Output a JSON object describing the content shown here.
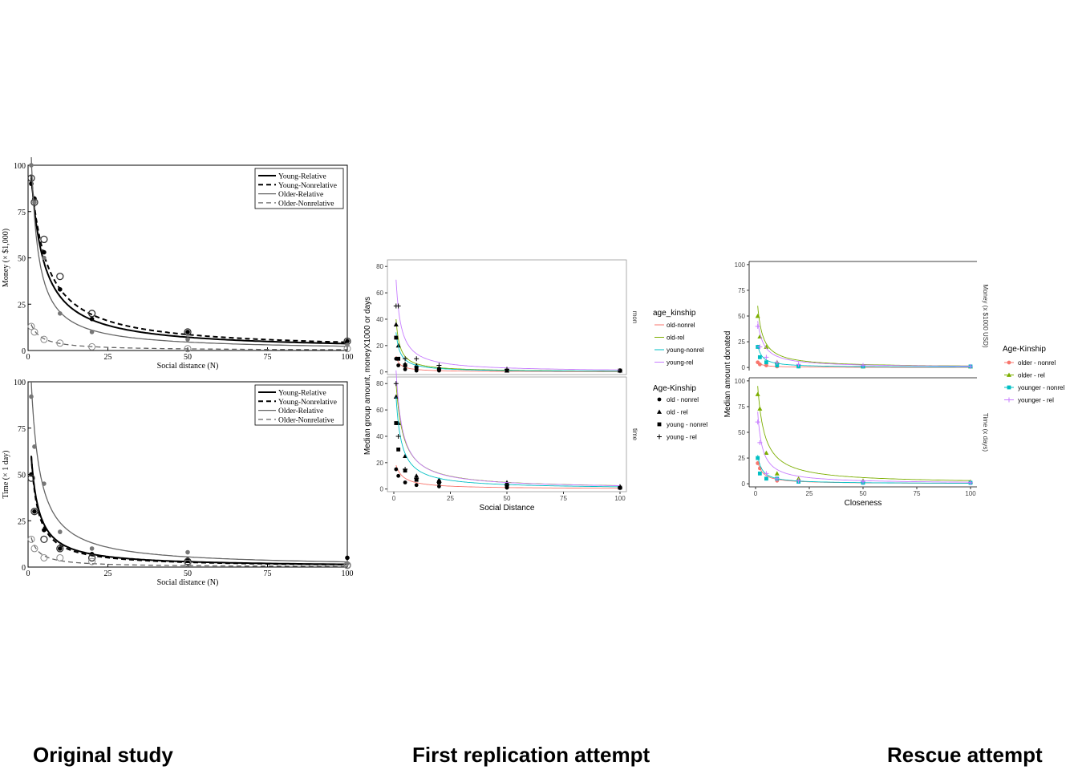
{
  "captions": {
    "original": "Original study",
    "replication": "First replication attempt",
    "rescue": "Rescue attempt"
  },
  "chart_data": [
    {
      "id": "original-money",
      "type": "line",
      "xlabel": "Social distance (N)",
      "ylabel": "Money (× $1,000)",
      "xlim": [
        0,
        100
      ],
      "ylim": [
        0,
        100
      ],
      "xticks": [
        "0",
        "25",
        "50",
        "75",
        "100"
      ],
      "yticks": [
        "0",
        "25",
        "50",
        "75",
        "100"
      ],
      "legend_position": "top-right",
      "series": [
        {
          "name": "Young-Relative",
          "x": [
            1,
            2,
            5,
            10,
            20,
            50,
            100
          ],
          "y": [
            90,
            82,
            53,
            33,
            17,
            10,
            5
          ],
          "fit": [
            95,
            0.25
          ],
          "color": "#000000",
          "dash": "",
          "width": 2,
          "marker": "dot-black"
        },
        {
          "name": "Young-Nonrelative",
          "x": [
            1,
            2,
            5,
            10,
            20,
            50,
            100
          ],
          "y": [
            93,
            80,
            60,
            40,
            20,
            10,
            5
          ],
          "fit": [
            93,
            0.2
          ],
          "color": "#000000",
          "dash": "6,4",
          "width": 2,
          "marker": "ring-black"
        },
        {
          "name": "Older-Relative",
          "x": [
            1,
            2,
            5,
            10,
            20,
            50,
            100
          ],
          "y": [
            100,
            80,
            50,
            20,
            10,
            6,
            3
          ],
          "fit": [
            105,
            0.45
          ],
          "color": "#666666",
          "dash": "",
          "width": 1.3,
          "marker": "dot-gray"
        },
        {
          "name": "Older-Nonrelative",
          "x": [
            1,
            2,
            5,
            10,
            20,
            50,
            100
          ],
          "y": [
            13,
            10,
            6,
            4,
            2,
            1,
            1
          ],
          "fit": [
            14,
            0.3
          ],
          "color": "#666666",
          "dash": "6,4",
          "width": 1.3,
          "marker": "ring-gray"
        }
      ]
    },
    {
      "id": "original-time",
      "type": "line",
      "xlabel": "Social distance (N)",
      "ylabel": "Time (× 1 day)",
      "xlim": [
        0,
        100
      ],
      "ylim": [
        0,
        100
      ],
      "xticks": [
        "0",
        "25",
        "50",
        "75",
        "100"
      ],
      "yticks": [
        "0",
        "25",
        "50",
        "75",
        "100"
      ],
      "legend_position": "top-right",
      "series": [
        {
          "name": "Young-Relative",
          "x": [
            1,
            2,
            5,
            10,
            20,
            50,
            100
          ],
          "y": [
            50,
            30,
            20,
            10,
            7,
            4,
            5
          ],
          "fit": [
            60,
            0.4
          ],
          "color": "#000000",
          "dash": "",
          "width": 2,
          "marker": "dot-black"
        },
        {
          "name": "Young-Nonrelative",
          "x": [
            1,
            2,
            5,
            10,
            20,
            50,
            100
          ],
          "y": [
            48,
            30,
            15,
            10,
            5,
            3,
            1
          ],
          "fit": [
            60,
            0.45
          ],
          "color": "#000000",
          "dash": "6,4",
          "width": 2,
          "marker": "ring-black"
        },
        {
          "name": "Older-Relative",
          "x": [
            1,
            2,
            5,
            10,
            20,
            50,
            100
          ],
          "y": [
            92,
            65,
            45,
            19,
            10,
            8,
            2
          ],
          "fit": [
            100,
            0.35
          ],
          "color": "#666666",
          "dash": "",
          "width": 1.3,
          "marker": "dot-gray"
        },
        {
          "name": "Older-Nonrelative",
          "x": [
            1,
            2,
            5,
            10,
            20,
            50,
            100
          ],
          "y": [
            15,
            10,
            5,
            5,
            3,
            2,
            1
          ],
          "fit": [
            16,
            0.4
          ],
          "color": "#666666",
          "dash": "6,4",
          "width": 1.3,
          "marker": "ring-gray"
        }
      ]
    },
    {
      "id": "replication",
      "type": "line",
      "ylabel": "Median group amount, moneyX1000 or days",
      "xlabel": "Social Distance",
      "xticks": [
        "0",
        "25",
        "50",
        "75",
        "100"
      ],
      "panels": [
        {
          "strip": "mon",
          "yticks": [
            "0",
            "20",
            "40",
            "60",
            "80"
          ],
          "ylim": [
            -2,
            85
          ],
          "series": [
            {
              "name": "old-nonrel",
              "x": [
                1,
                2,
                5,
                10,
                20,
                50,
                100
              ],
              "y": [
                10,
                5,
                2,
                1,
                1,
                1,
                1
              ],
              "fit": [
                12,
                0.6
              ]
            },
            {
              "name": "old-rel",
              "x": [
                1,
                2,
                5,
                10,
                20,
                50,
                100
              ],
              "y": [
                36,
                20,
                6,
                5,
                3,
                1,
                1
              ],
              "fit": [
                40,
                0.6
              ]
            },
            {
              "name": "young-nonrel",
              "x": [
                1,
                2,
                5,
                10,
                20,
                50,
                100
              ],
              "y": [
                26,
                10,
                5,
                3,
                2,
                1,
                1
              ],
              "fit": [
                30,
                0.55
              ]
            },
            {
              "name": "young-rel",
              "x": [
                1,
                2,
                5,
                10,
                20,
                50,
                100
              ],
              "y": [
                50,
                50,
                10,
                10,
                5,
                2,
                1
              ],
              "fit": [
                70,
                0.45
              ]
            }
          ]
        },
        {
          "strip": "time",
          "yticks": [
            "0",
            "20",
            "40",
            "60",
            "80"
          ],
          "ylim": [
            -2,
            85
          ],
          "series": [
            {
              "name": "old-nonrel",
              "x": [
                1,
                2,
                5,
                10,
                20,
                50,
                100
              ],
              "y": [
                15,
                10,
                5,
                3,
                2,
                1,
                1
              ],
              "fit": [
                18,
                0.3
              ]
            },
            {
              "name": "old-rel",
              "x": [
                1,
                2,
                5,
                10,
                20,
                50,
                100
              ],
              "y": [
                70,
                50,
                25,
                10,
                7,
                5,
                2
              ],
              "fit": [
                80,
                0.3
              ]
            },
            {
              "name": "young-nonrel",
              "x": [
                1,
                2,
                5,
                10,
                20,
                50,
                100
              ],
              "y": [
                50,
                30,
                14,
                7,
                5,
                2,
                1
              ],
              "fit": [
                70,
                0.4
              ]
            },
            {
              "name": "young-rel",
              "x": [
                1,
                2,
                5,
                10,
                20,
                50,
                100
              ],
              "y": [
                80,
                40,
                15,
                8,
                5,
                3,
                1
              ],
              "fit": [
                90,
                0.35
              ]
            }
          ]
        }
      ],
      "legend_line": {
        "title": "age_kinship",
        "entries": [
          {
            "name": "old-nonrel",
            "color": "#F8766D"
          },
          {
            "name": "old-rel",
            "color": "#7CAE00"
          },
          {
            "name": "young-nonrel",
            "color": "#00BFC4"
          },
          {
            "name": "young-rel",
            "color": "#C77CFF"
          }
        ]
      },
      "legend_marker": {
        "title": "Age-Kinship",
        "entries": [
          {
            "name": "old - nonrel",
            "marker": "circle"
          },
          {
            "name": "old - rel",
            "marker": "triangle"
          },
          {
            "name": "young - nonrel",
            "marker": "square"
          },
          {
            "name": "young - rel",
            "marker": "plus"
          }
        ]
      }
    },
    {
      "id": "rescue",
      "type": "line",
      "ylabel": "Median amount donated",
      "xlabel": "Closeness",
      "xticks": [
        "0",
        "25",
        "50",
        "75",
        "100"
      ],
      "panels": [
        {
          "strip": "Money (x $1000 USD)",
          "yticks": [
            "0",
            "25",
            "50",
            "75",
            "100"
          ],
          "ylim": [
            -3,
            103
          ],
          "series": [
            {
              "name": "older - nonrel",
              "x": [
                1,
                2,
                5,
                10,
                20,
                50,
                100
              ],
              "y": [
                5,
                3,
                2,
                1,
                1,
                1,
                1
              ],
              "fit": [
                6,
                0.6
              ]
            },
            {
              "name": "older - rel",
              "x": [
                1,
                2,
                5,
                10,
                20,
                50,
                100
              ],
              "y": [
                50,
                30,
                20,
                5,
                2,
                1,
                1
              ],
              "fit": [
                60,
                0.4
              ]
            },
            {
              "name": "younger - nonrel",
              "x": [
                1,
                2,
                5,
                10,
                20,
                50,
                100
              ],
              "y": [
                20,
                10,
                5,
                2,
                1,
                1,
                1
              ],
              "fit": [
                22,
                0.5
              ]
            },
            {
              "name": "younger - rel",
              "x": [
                1,
                2,
                5,
                10,
                20,
                50,
                100
              ],
              "y": [
                40,
                20,
                10,
                5,
                3,
                2,
                1
              ],
              "fit": [
                45,
                0.35
              ]
            }
          ]
        },
        {
          "strip": "Time (x days)",
          "yticks": [
            "0",
            "25",
            "50",
            "75",
            "100"
          ],
          "ylim": [
            -3,
            103
          ],
          "series": [
            {
              "name": "older - nonrel",
              "x": [
                1,
                2,
                5,
                10,
                20,
                50,
                100
              ],
              "y": [
                20,
                15,
                5,
                3,
                2,
                1,
                1
              ],
              "fit": [
                22,
                0.45
              ]
            },
            {
              "name": "older - rel",
              "x": [
                1,
                2,
                5,
                10,
                20,
                50,
                100
              ],
              "y": [
                87,
                73,
                30,
                10,
                5,
                3,
                2
              ],
              "fit": [
                95,
                0.3
              ]
            },
            {
              "name": "younger - nonrel",
              "x": [
                1,
                2,
                5,
                10,
                20,
                50,
                100
              ],
              "y": [
                25,
                10,
                5,
                5,
                2,
                1,
                1
              ],
              "fit": [
                28,
                0.5
              ]
            },
            {
              "name": "younger - rel",
              "x": [
                1,
                2,
                5,
                10,
                20,
                50,
                100
              ],
              "y": [
                60,
                40,
                10,
                5,
                3,
                2,
                1
              ],
              "fit": [
                70,
                0.45
              ]
            }
          ]
        }
      ],
      "legend": {
        "title": "Age-Kinship",
        "entries": [
          {
            "name": "older - nonrel",
            "color": "#F8766D",
            "marker": "circle"
          },
          {
            "name": "older - rel",
            "color": "#7CAE00",
            "marker": "triangle"
          },
          {
            "name": "younger - nonrel",
            "color": "#00BFC4",
            "marker": "square"
          },
          {
            "name": "younger - rel",
            "color": "#C77CFF",
            "marker": "plus"
          }
        ]
      }
    }
  ]
}
